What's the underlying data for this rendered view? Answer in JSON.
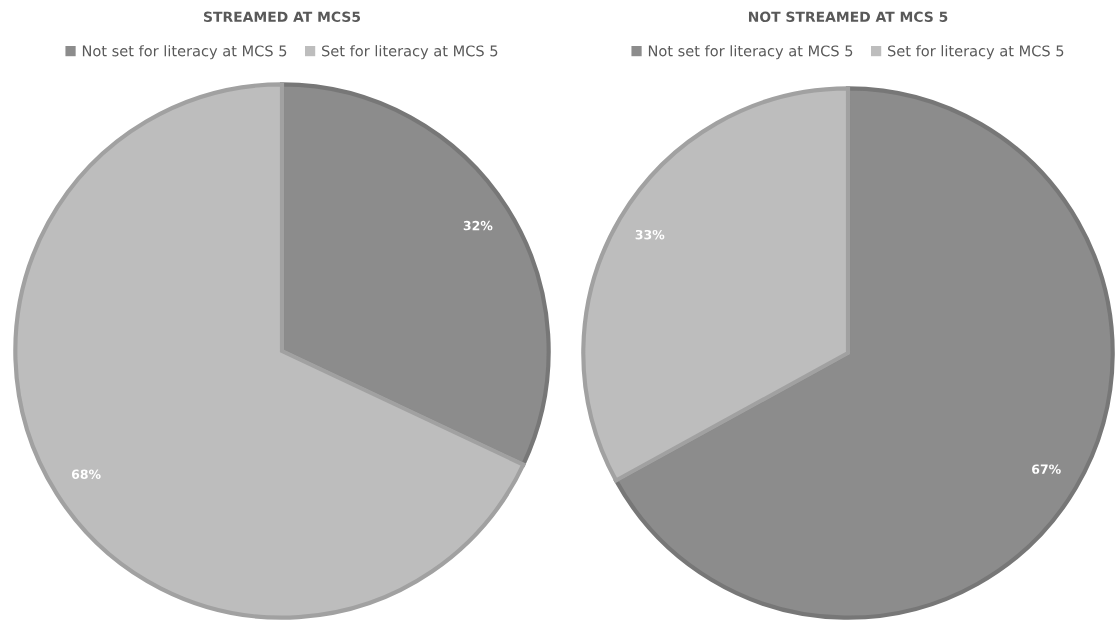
{
  "chart_data": [
    {
      "type": "pie",
      "title": "STREAMED AT MCS5",
      "categories": [
        "Not set for literacy at MCS 5",
        "Set for literacy at MCS 5"
      ],
      "values": [
        32,
        68
      ],
      "colors": [
        "#8c8c8c",
        "#bdbdbd"
      ],
      "value_labels": [
        "32%",
        "68%"
      ],
      "legend": "top"
    },
    {
      "type": "pie",
      "title": "NOT STREAMED AT MCS 5",
      "categories": [
        "Not set for literacy at MCS 5",
        "Set for literacy at MCS 5"
      ],
      "values": [
        67,
        33
      ],
      "colors": [
        "#8c8c8c",
        "#bdbdbd"
      ],
      "value_labels": [
        "67%",
        "33%"
      ],
      "legend": "top"
    }
  ]
}
